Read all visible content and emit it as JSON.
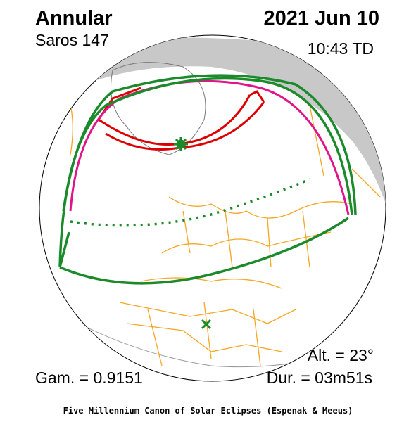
{
  "header": {
    "eclipse_type": "Annular",
    "saros": "Saros 147",
    "date": "2021 Jun 10",
    "time": "10:43 TD"
  },
  "stats": {
    "gamma": "Gam. = 0.9151",
    "altitude": "Alt. = 23°",
    "duration": "Dur. = 03m51s"
  },
  "footer": {
    "credit": "Five Millennium Canon of Solar Eclipses (Espenak & Meeus)"
  }
}
